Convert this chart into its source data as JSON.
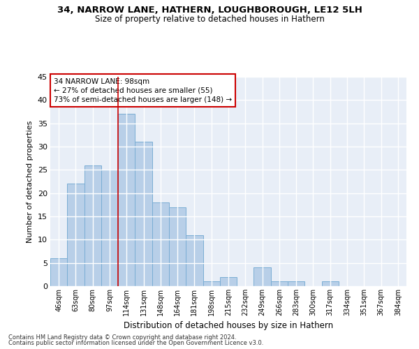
{
  "title1": "34, NARROW LANE, HATHERN, LOUGHBOROUGH, LE12 5LH",
  "title2": "Size of property relative to detached houses in Hathern",
  "xlabel": "Distribution of detached houses by size in Hathern",
  "ylabel": "Number of detached properties",
  "categories": [
    "46sqm",
    "63sqm",
    "80sqm",
    "97sqm",
    "114sqm",
    "131sqm",
    "148sqm",
    "164sqm",
    "181sqm",
    "198sqm",
    "215sqm",
    "232sqm",
    "249sqm",
    "266sqm",
    "283sqm",
    "300sqm",
    "317sqm",
    "334sqm",
    "351sqm",
    "367sqm",
    "384sqm"
  ],
  "values": [
    6,
    22,
    26,
    25,
    37,
    31,
    18,
    17,
    11,
    1,
    2,
    0,
    4,
    1,
    1,
    0,
    1,
    0,
    0,
    0,
    0
  ],
  "bar_color": "#b8cfe8",
  "bar_edgecolor": "#7aadd4",
  "vline_x": 3.5,
  "vline_color": "#cc0000",
  "annotation_line1": "34 NARROW LANE: 98sqm",
  "annotation_line2": "← 27% of detached houses are smaller (55)",
  "annotation_line3": "73% of semi-detached houses are larger (148) →",
  "annotation_box_facecolor": "#ffffff",
  "annotation_box_edgecolor": "#cc0000",
  "ylim": [
    0,
    45
  ],
  "yticks": [
    0,
    5,
    10,
    15,
    20,
    25,
    30,
    35,
    40,
    45
  ],
  "background_color": "#e8eef7",
  "grid_color": "#ffffff",
  "footnote1": "Contains HM Land Registry data © Crown copyright and database right 2024.",
  "footnote2": "Contains public sector information licensed under the Open Government Licence v3.0."
}
